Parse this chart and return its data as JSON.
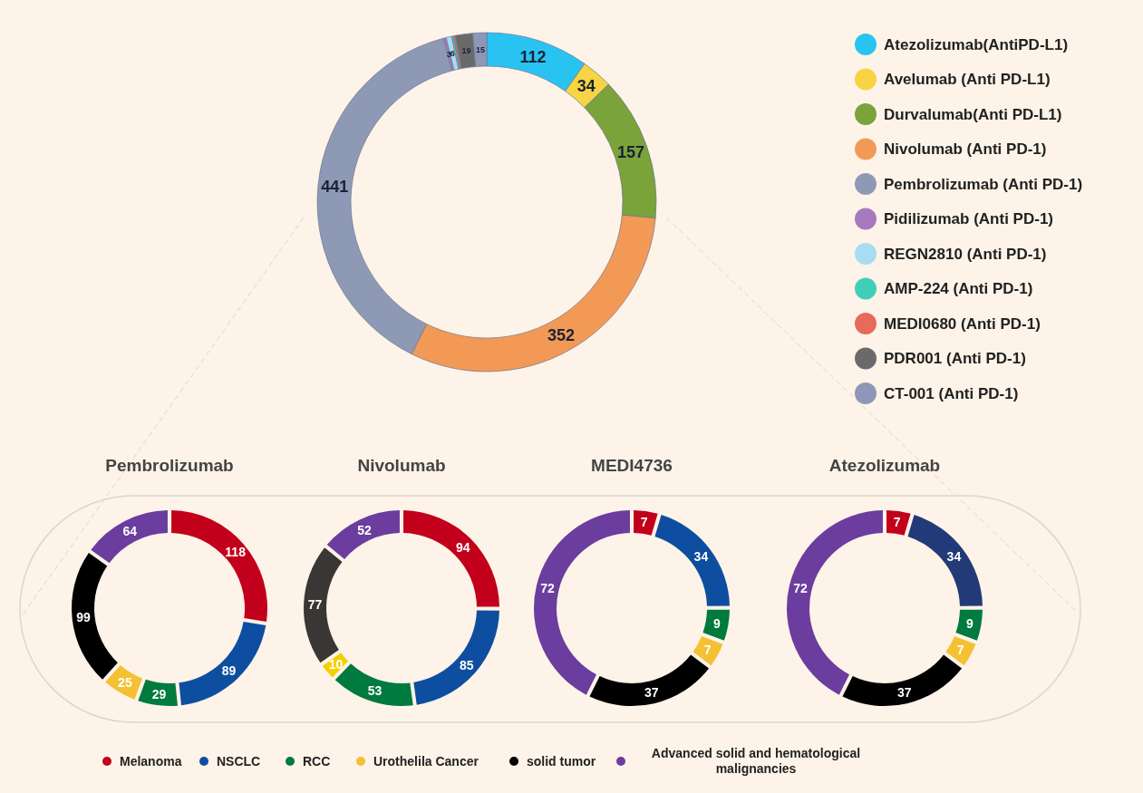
{
  "chart_data": [
    {
      "type": "donut",
      "categories": [
        "Atezolizumab(AntiPD-L1)",
        "Avelumab (Anti PD-L1)",
        "Durvalumab(Anti PD-L1)",
        "Nivolumab (Anti PD-1)",
        "Pembrolizumab (Anti PD-1)",
        "Pidilizumab (Anti PD-1)",
        "REGN2810 (Anti PD-1)",
        "AMP-224 (Anti PD-1)",
        "MEDI0680 (Anti PD-1)",
        "PDR001 (Anti PD-1)",
        "CT-001 (Anti PD-1)"
      ],
      "values": [
        112,
        34,
        157,
        352,
        441,
        3,
        6,
        2,
        2,
        19,
        15
      ],
      "value_labels": [
        "112",
        "34",
        "157",
        "352",
        "441",
        "3",
        "6",
        null,
        null,
        "19",
        "15"
      ],
      "colors": [
        "#29c3f2",
        "#f6d443",
        "#7aa33a",
        "#f29a55",
        "#8e9ab5",
        "#a679be",
        "#a9dcf3",
        "#3fcfb8",
        "#e86a5a",
        "#6a6a6a",
        "#8f97b8"
      ],
      "legend": "right"
    },
    {
      "type": "donut",
      "title": "Pembrolizumab",
      "categories": [
        "Melanoma",
        "NSCLC",
        "RCC",
        "Urothelila Cancer",
        "solid tumor",
        "Advanced solid and hematological malignancies"
      ],
      "values": [
        118,
        89,
        29,
        25,
        99,
        64
      ],
      "colors": [
        "#c2001b",
        "#0d4ea0",
        "#007a3e",
        "#f4c132",
        "#000000",
        "#6a3d9e"
      ],
      "data_labels": true,
      "legend": "bottom"
    },
    {
      "type": "donut",
      "title": "Nivolumab",
      "categories": [
        null,
        null,
        null,
        null,
        null,
        null
      ],
      "values": [
        94,
        85,
        53,
        10,
        77,
        52
      ],
      "colors": [
        "#c2001b",
        "#0d4ea0",
        "#007a3e",
        "#f4d000",
        "#3a3636",
        "#6a3d9e"
      ],
      "data_labels": true
    },
    {
      "type": "donut",
      "title": "MEDI4736",
      "categories": [
        null,
        null,
        null,
        null,
        null,
        null
      ],
      "values": [
        7,
        34,
        9,
        7,
        37,
        72
      ],
      "colors": [
        "#c2001b",
        "#0d4ea0",
        "#007a3e",
        "#f4c132",
        "#000000",
        "#6a3d9e"
      ],
      "data_labels": true
    },
    {
      "type": "donut",
      "title": "Atezolizumab",
      "categories": [
        null,
        null,
        null,
        null,
        null,
        null
      ],
      "values": [
        7,
        34,
        9,
        7,
        37,
        72
      ],
      "colors": [
        "#c2001b",
        "#233a78",
        "#007a3e",
        "#f4c132",
        "#000000",
        "#6a3d9e"
      ],
      "data_labels": true
    }
  ]
}
